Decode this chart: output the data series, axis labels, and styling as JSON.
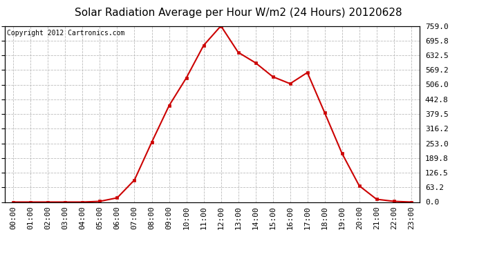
{
  "title": "Solar Radiation Average per Hour W/m2 (24 Hours) 20120628",
  "copyright_text": "Copyright 2012 Cartronics.com",
  "hours": [
    "00:00",
    "01:00",
    "02:00",
    "03:00",
    "04:00",
    "05:00",
    "06:00",
    "07:00",
    "08:00",
    "09:00",
    "10:00",
    "11:00",
    "12:00",
    "13:00",
    "14:00",
    "15:00",
    "16:00",
    "17:00",
    "18:00",
    "19:00",
    "20:00",
    "21:00",
    "22:00",
    "23:00"
  ],
  "values": [
    0,
    0,
    0,
    0,
    0,
    3,
    18,
    95,
    258,
    415,
    535,
    675,
    759,
    645,
    600,
    540,
    510,
    558,
    385,
    210,
    70,
    12,
    3,
    0
  ],
  "line_color": "#cc0000",
  "marker": "s",
  "marker_size": 3,
  "background_color": "#ffffff",
  "plot_bg_color": "#ffffff",
  "grid_color": "#bbbbbb",
  "yticks": [
    0.0,
    63.2,
    126.5,
    189.8,
    253.0,
    316.2,
    379.5,
    442.8,
    506.0,
    569.2,
    632.5,
    695.8,
    759.0
  ],
  "ymax": 759.0,
  "ymin": 0.0,
  "title_fontsize": 11,
  "copyright_fontsize": 7,
  "tick_fontsize": 8,
  "ytick_labels": [
    "0.0",
    "63.2",
    "126.5",
    "189.8",
    "253.0",
    "316.2",
    "379.5",
    "442.8",
    "506.0",
    "569.2",
    "632.5",
    "695.8",
    "759.0"
  ]
}
